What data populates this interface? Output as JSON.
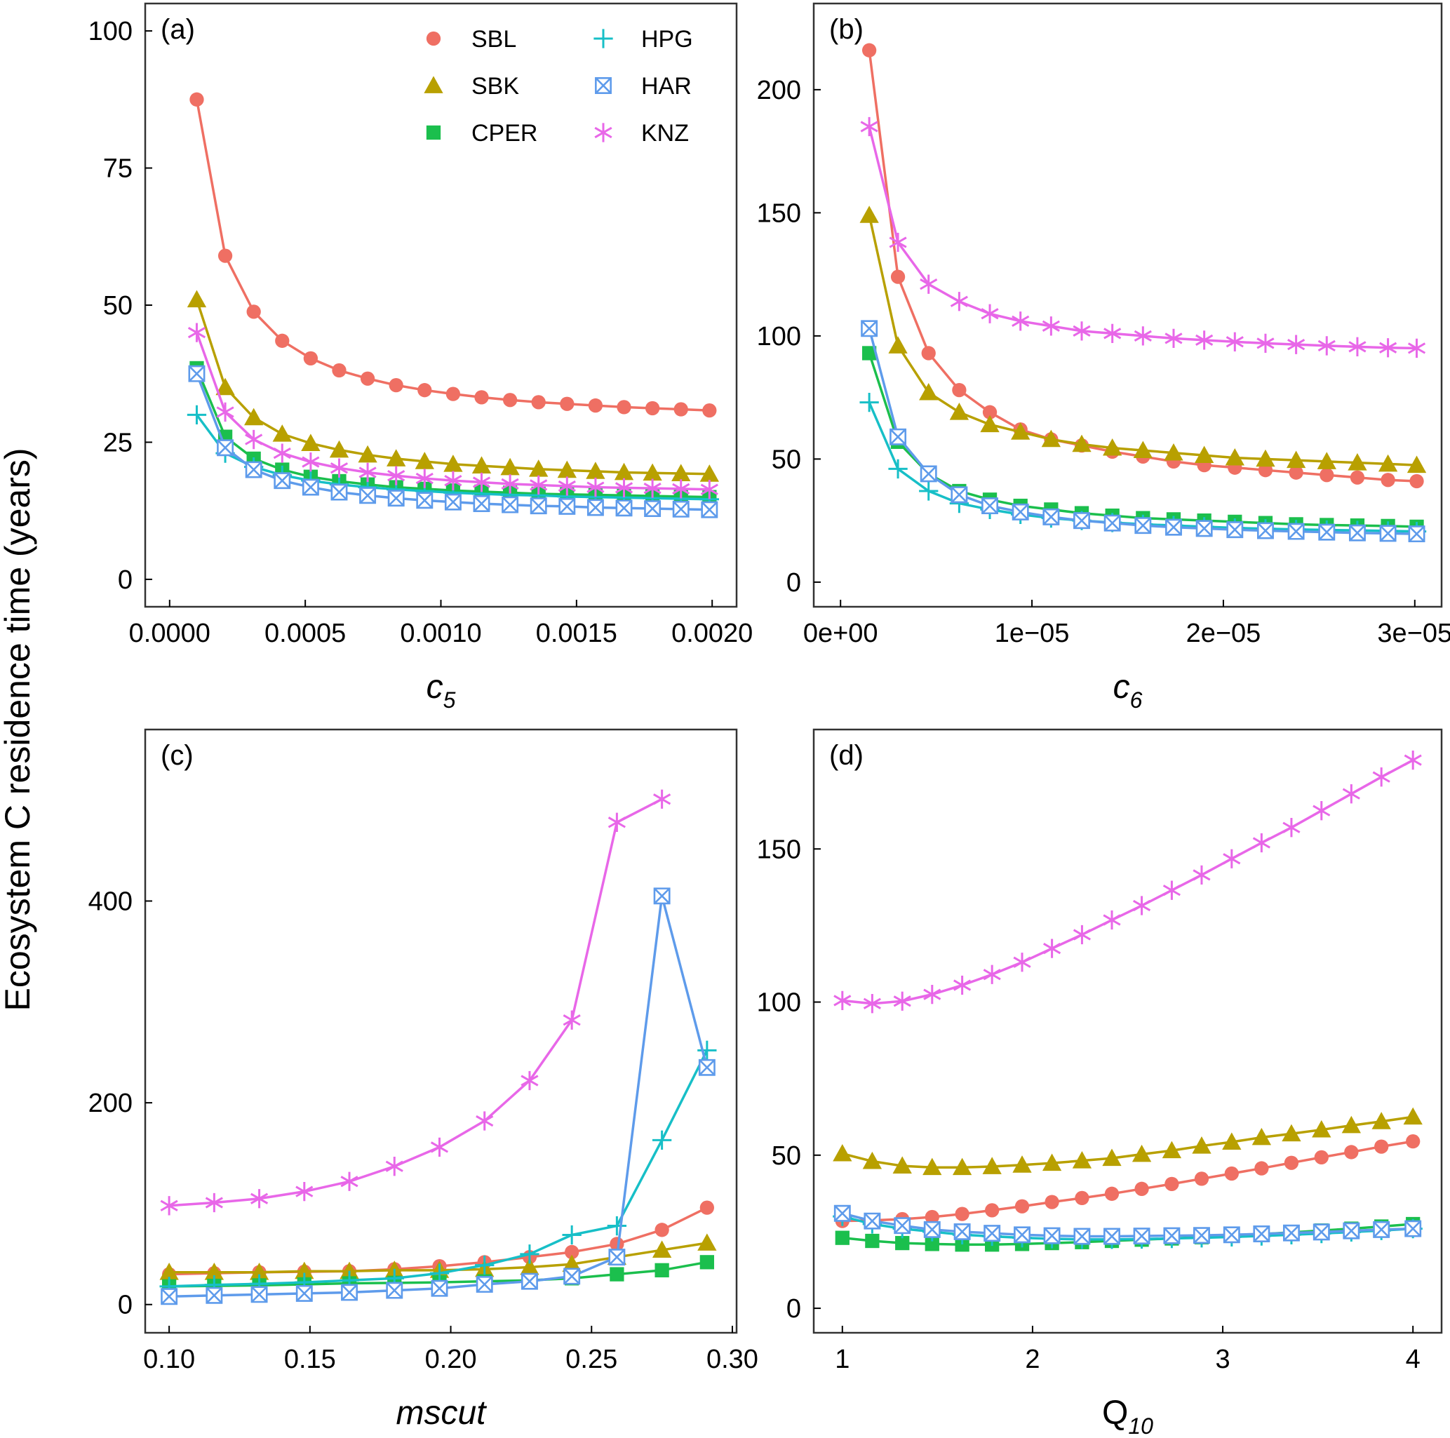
{
  "figure": {
    "ylabel": "Ecosystem C residence time (years)"
  },
  "colors": {
    "SBL": "#EF6F63",
    "SBK": "#B8A000",
    "CPER": "#1BBF4D",
    "HPG": "#17BFC7",
    "HAR": "#5E9BEB",
    "KNZ": "#E867E8"
  },
  "legend": [
    {
      "key": "SBL",
      "label": "SBL",
      "marker": "circle"
    },
    {
      "key": "SBK",
      "label": "SBK",
      "marker": "triangle"
    },
    {
      "key": "CPER",
      "label": "CPER",
      "marker": "square"
    },
    {
      "key": "HPG",
      "label": "HPG",
      "marker": "plus"
    },
    {
      "key": "HAR",
      "label": "HAR",
      "marker": "box-x"
    },
    {
      "key": "KNZ",
      "label": "KNZ",
      "marker": "asterisk"
    }
  ],
  "chart_data": [
    {
      "type": "line",
      "panel": "(a)",
      "xlabel_main": "c",
      "xlabel_sub": "5",
      "xlabel_italic": true,
      "xlim": [
        -9e-05,
        0.00209
      ],
      "ylim": [
        -5,
        105
      ],
      "xticks": [
        0.0,
        0.0005,
        0.001,
        0.0015,
        0.002
      ],
      "xtick_labels": [
        "0.0000",
        "0.0005",
        "0.0010",
        "0.0015",
        "0.0020"
      ],
      "yticks": [
        0,
        25,
        50,
        75,
        100
      ],
      "ytick_labels": [
        "0",
        "25",
        "50",
        "75",
        "100"
      ],
      "show_legend": true,
      "x": [
        0.0001,
        0.000205,
        0.00031,
        0.000415,
        0.00052,
        0.000625,
        0.00073,
        0.000835,
        0.00094,
        0.001045,
        0.00115,
        0.001255,
        0.00136,
        0.001465,
        0.00157,
        0.001675,
        0.00178,
        0.001885,
        0.00199
      ],
      "series": [
        {
          "name": "SBL",
          "values": [
            87.5,
            59,
            48.8,
            43.5,
            40.3,
            38.1,
            36.6,
            35.4,
            34.5,
            33.8,
            33.2,
            32.7,
            32.3,
            32.0,
            31.7,
            31.4,
            31.2,
            31.0,
            30.8
          ]
        },
        {
          "name": "SBK",
          "values": [
            51,
            35,
            29.5,
            26.5,
            24.8,
            23.6,
            22.7,
            22.0,
            21.5,
            21.0,
            20.7,
            20.4,
            20.1,
            19.9,
            19.7,
            19.5,
            19.4,
            19.3,
            19.2
          ]
        },
        {
          "name": "CPER",
          "values": [
            38.5,
            26,
            22,
            20,
            18.7,
            17.9,
            17.3,
            16.8,
            16.5,
            16.2,
            16.0,
            15.8,
            15.6,
            15.5,
            15.4,
            15.3,
            15.2,
            15.1,
            15.0
          ]
        },
        {
          "name": "HPG",
          "values": [
            30,
            23,
            20.5,
            19,
            18,
            17.3,
            16.8,
            16.4,
            16.1,
            15.8,
            15.6,
            15.4,
            15.3,
            15.1,
            15.0,
            14.9,
            14.8,
            14.7,
            14.6
          ]
        },
        {
          "name": "HAR",
          "values": [
            37.5,
            24,
            20,
            18,
            16.8,
            15.9,
            15.3,
            14.8,
            14.4,
            14.1,
            13.8,
            13.6,
            13.4,
            13.3,
            13.1,
            13.0,
            12.9,
            12.8,
            12.7
          ]
        },
        {
          "name": "KNZ",
          "values": [
            45,
            30.5,
            25.5,
            23,
            21.4,
            20.3,
            19.5,
            18.9,
            18.4,
            18.0,
            17.7,
            17.4,
            17.2,
            17.0,
            16.8,
            16.7,
            16.6,
            16.5,
            16.4
          ]
        }
      ]
    },
    {
      "type": "line",
      "panel": "(b)",
      "xlabel_main": "c",
      "xlabel_sub": "6",
      "xlabel_italic": true,
      "xlim": [
        -1.4e-06,
        3.14e-05
      ],
      "ylim": [
        -10,
        235
      ],
      "xticks": [
        0.0,
        1e-05,
        2e-05,
        3e-05
      ],
      "xtick_labels": [
        "0e+00",
        "1e−05",
        "2e−05",
        "3e−05"
      ],
      "yticks": [
        0,
        50,
        100,
        150,
        200
      ],
      "ytick_labels": [
        "0",
        "50",
        "100",
        "150",
        "200"
      ],
      "show_legend": false,
      "x": [
        1.5e-06,
        3e-06,
        4.6e-06,
        6.2e-06,
        7.8e-06,
        9.4e-06,
        1.1e-05,
        1.26e-05,
        1.42e-05,
        1.58e-05,
        1.74e-05,
        1.9e-05,
        2.06e-05,
        2.22e-05,
        2.38e-05,
        2.54e-05,
        2.7e-05,
        2.86e-05,
        3.01e-05
      ],
      "series": [
        {
          "name": "SBL",
          "values": [
            216,
            124,
            93,
            78,
            69,
            62,
            58,
            55.5,
            53,
            51,
            49,
            47.5,
            46.5,
            45.5,
            44.5,
            43.5,
            42.5,
            41.5,
            41
          ]
        },
        {
          "name": "SBK",
          "values": [
            149,
            96,
            77,
            69,
            64,
            61,
            58,
            56,
            54.5,
            53.5,
            52.5,
            51.5,
            50.5,
            50,
            49.5,
            49,
            48.5,
            48,
            47.5
          ]
        },
        {
          "name": "CPER",
          "values": [
            93,
            57,
            44,
            37,
            33.5,
            31,
            29.5,
            28,
            27,
            26,
            25.5,
            25,
            24.5,
            24,
            23.5,
            23.2,
            23,
            22.8,
            22.5
          ]
        },
        {
          "name": "HPG",
          "values": [
            73,
            46,
            37,
            32,
            29.5,
            27.5,
            26,
            25,
            24.2,
            23.5,
            23,
            22.5,
            22,
            21.7,
            21.4,
            21.2,
            21,
            20.8,
            20.6
          ]
        },
        {
          "name": "HAR",
          "values": [
            103,
            59,
            44,
            35.5,
            31,
            28.5,
            26.5,
            25,
            24,
            23,
            22.3,
            21.8,
            21.3,
            20.9,
            20.6,
            20.3,
            20,
            19.8,
            19.6
          ]
        },
        {
          "name": "KNZ",
          "values": [
            185,
            138,
            121,
            114,
            109,
            106,
            104,
            102,
            101,
            100,
            99,
            98.3,
            97.6,
            97,
            96.5,
            96,
            95.6,
            95.2,
            95
          ]
        }
      ]
    },
    {
      "type": "line",
      "panel": "(c)",
      "xlabel_main": "mscut",
      "xlabel_sub": "",
      "xlabel_italic": true,
      "xlim": [
        0.0915,
        0.3015
      ],
      "ylim": [
        -28,
        570
      ],
      "xticks": [
        0.1,
        0.15,
        0.2,
        0.25,
        0.3
      ],
      "xtick_labels": [
        "0.10",
        "0.15",
        "0.20",
        "0.25",
        "0.30"
      ],
      "yticks": [
        0,
        200,
        400
      ],
      "ytick_labels": [
        "0",
        "200",
        "400"
      ],
      "show_legend": false,
      "x": [
        0.1,
        0.116,
        0.132,
        0.148,
        0.164,
        0.18,
        0.196,
        0.212,
        0.228,
        0.243,
        0.259,
        0.275,
        0.291
      ],
      "series": [
        {
          "name": "SBL",
          "values": [
            30,
            31,
            32,
            32.5,
            33,
            35,
            38,
            42,
            47,
            52,
            60,
            74,
            96
          ]
        },
        {
          "name": "SBK",
          "values": [
            32,
            32,
            32,
            33,
            33,
            34,
            34,
            35,
            37,
            40,
            47,
            54,
            61
          ]
        },
        {
          "name": "CPER",
          "values": [
            18,
            18.5,
            19,
            20,
            21,
            21.5,
            22,
            23,
            24,
            26,
            30,
            34,
            42
          ]
        },
        {
          "name": "HPG",
          "values": [
            18,
            19.5,
            20.5,
            22,
            24,
            26,
            31,
            39,
            50,
            69,
            78,
            163,
            252
          ]
        },
        {
          "name": "HAR",
          "values": [
            8,
            9,
            10,
            11,
            12,
            14,
            16,
            20,
            23,
            28,
            47,
            405,
            235
          ]
        },
        {
          "name": "KNZ",
          "values": [
            98,
            101,
            105,
            112,
            122,
            137,
            156,
            182,
            222,
            282,
            478,
            501,
            null
          ]
        }
      ]
    },
    {
      "type": "line",
      "panel": "(d)",
      "xlabel_main": "Q",
      "xlabel_sub": "10",
      "xlabel_italic": false,
      "xlim": [
        0.8495,
        4.1505
      ],
      "ylim": [
        -8,
        189
      ],
      "xticks": [
        1,
        2,
        3,
        4
      ],
      "xtick_labels": [
        "1",
        "2",
        "3",
        "4"
      ],
      "yticks": [
        0,
        50,
        100,
        150
      ],
      "ytick_labels": [
        "0",
        "50",
        "100",
        "150"
      ],
      "show_legend": false,
      "x": [
        1,
        1.157,
        1.315,
        1.472,
        1.63,
        1.787,
        1.945,
        2.102,
        2.26,
        2.417,
        2.574,
        2.732,
        2.889,
        3.047,
        3.204,
        3.361,
        3.519,
        3.676,
        3.834,
        4.0
      ],
      "series": [
        {
          "name": "SBL",
          "values": [
            28.5,
            28.7,
            29.1,
            29.8,
            30.8,
            32,
            33.3,
            34.7,
            36,
            37.4,
            39,
            40.6,
            42.3,
            44,
            45.7,
            47.5,
            49.3,
            51,
            52.8,
            54.5
          ]
        },
        {
          "name": "SBK",
          "values": [
            50.5,
            48,
            46.5,
            46,
            46,
            46.3,
            46.8,
            47.4,
            48.2,
            49,
            50.3,
            51.5,
            53,
            54.3,
            55.8,
            57,
            58.3,
            59.7,
            61,
            62.5
          ]
        },
        {
          "name": "CPER",
          "values": [
            23,
            22,
            21.3,
            21,
            20.8,
            20.8,
            21,
            21.3,
            21.6,
            22,
            22.4,
            22.8,
            23.2,
            23.7,
            24.2,
            24.8,
            25.4,
            26,
            26.7,
            27.5
          ]
        },
        {
          "name": "HPG",
          "values": [
            30,
            27.5,
            26,
            25,
            24,
            23.5,
            23,
            22.7,
            22.5,
            22.5,
            22.6,
            22.8,
            23,
            23.3,
            23.6,
            24,
            24.4,
            24.9,
            25.4,
            26
          ]
        },
        {
          "name": "HAR",
          "values": [
            31,
            28.5,
            27,
            25.7,
            25,
            24.5,
            24,
            23.7,
            23.5,
            23.5,
            23.6,
            23.7,
            23.8,
            24,
            24.3,
            24.6,
            24.9,
            25.3,
            25.7,
            26
          ]
        },
        {
          "name": "KNZ",
          "values": [
            100.5,
            99.5,
            100.3,
            102.5,
            105.5,
            109,
            113,
            117.5,
            122,
            126.8,
            131.5,
            136.5,
            141.5,
            146.8,
            152,
            157,
            162.5,
            168,
            173.5,
            179
          ]
        }
      ]
    }
  ]
}
